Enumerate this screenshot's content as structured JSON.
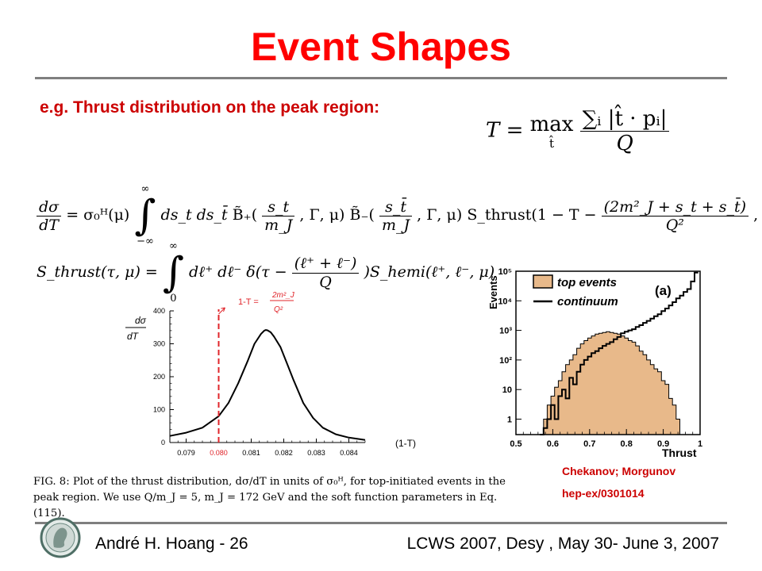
{
  "slide": {
    "title": "Event Shapes",
    "subtitle": "e.g. Thrust distribution on the peak region:",
    "thrust_definition": {
      "lhs": "T = ",
      "operator": "max",
      "operator_sub": "t̂",
      "numerator": "∑ᵢ |t̂ · pᵢ|",
      "denominator": "Q"
    },
    "eq1": {
      "lhs_num": "dσ",
      "lhs_den": "dT",
      "rhs_start": "= σ₀ᴴ(μ)",
      "integral": "∫",
      "int_upper": "∞",
      "int_lower": "−∞",
      "measure": "ds_t ds_t̄",
      "b_plus": "B̃₊(",
      "arg1_num": "s_t",
      "arg1_den": "m_J",
      "arg_rest": ", Γ, μ)",
      "b_minus": "B̃₋(",
      "arg2_num": "s_t̄",
      "arg2_den": "m_J",
      "s_thrust": "S_thrust(1 − T −",
      "arg3_num": "(2m²_J + s_t + s_t̄)",
      "arg3_den": "Q²",
      "arg3_rest": ", μ)"
    },
    "eq2": {
      "lhs": "S_thrust(τ, μ) =",
      "integral": "∫",
      "int_upper": "∞",
      "int_lower": "0",
      "measure": "dℓ⁺ dℓ⁻ δ(τ −",
      "frac_num": "(ℓ⁺ + ℓ⁻)",
      "frac_den": "Q",
      "rhs_end": ")S_hemi(ℓ⁺, ℓ⁻, μ)"
    },
    "caption": "FIG. 8: Plot of the thrust distribution, dσ/dT in units of σ₀ᴴ, for top-initiated events in the peak region. We use Q/m_J = 5, m_J = 172 GeV and the soft function parameters in Eq. (115).",
    "reference": {
      "names": "Chekanov;  Morgunov",
      "id": "hep-ex/0301014"
    },
    "footer": {
      "left": "André H. Hoang - 26",
      "right": "LCWS 2007, Desy , May 30- June 3, 2007"
    },
    "colors": {
      "title": "#ff0000",
      "subtitle": "#cc0000",
      "rule": "#7f7f7f",
      "marker_line": "#e0242a",
      "top_fill": "#e8b98a"
    }
  },
  "chart_data": [
    {
      "type": "line",
      "title": "",
      "ylabel_num": "dσ",
      "ylabel_den": "dT",
      "xlabel": "(1-T)",
      "xlim": [
        0.0785,
        0.0845
      ],
      "ylim": [
        0,
        400
      ],
      "x_ticks": [
        "0.079",
        "0.080",
        "0.081",
        "0.082",
        "0.083",
        "0.084"
      ],
      "y_ticks": [
        "0",
        "100",
        "200",
        "300",
        "400"
      ],
      "peak_marker": {
        "x": 0.08,
        "label_prefix": "1-T =",
        "label_num": "2m²_J",
        "label_den": "Q²"
      },
      "series": [
        {
          "x": [
            0.0785,
            0.079,
            0.0795,
            0.08,
            0.0803,
            0.0806,
            0.0809,
            0.0811,
            0.0813,
            0.0814,
            0.08145,
            0.0815,
            0.0816,
            0.0817,
            0.0819,
            0.0821,
            0.0823,
            0.0826,
            0.0829,
            0.0832,
            0.0836,
            0.084,
            0.0845
          ],
          "y": [
            20,
            30,
            45,
            80,
            120,
            180,
            250,
            300,
            330,
            340,
            342,
            341,
            335,
            322,
            290,
            240,
            190,
            120,
            75,
            45,
            25,
            15,
            8
          ]
        }
      ]
    },
    {
      "type": "histogram",
      "xlabel": "Thrust",
      "ylabel": "Events",
      "yscale": "log",
      "xlim": [
        0.5,
        1.0
      ],
      "ylim": [
        0.3,
        100000
      ],
      "x_ticks": [
        "0.5",
        "0.6",
        "0.7",
        "0.8",
        "0.9",
        "1"
      ],
      "y_ticks": [
        "1",
        "10",
        "10²",
        "10³",
        "10⁴",
        "10⁵"
      ],
      "panel_label": "(a)",
      "legend": {
        "placement": "top-left",
        "entries": [
          "top events",
          "continuum"
        ]
      },
      "series": [
        {
          "name": "top events",
          "x": [
            0.57,
            0.58,
            0.59,
            0.6,
            0.61,
            0.62,
            0.63,
            0.64,
            0.65,
            0.66,
            0.67,
            0.68,
            0.69,
            0.7,
            0.71,
            0.72,
            0.73,
            0.74,
            0.75,
            0.76,
            0.77,
            0.78,
            0.79,
            0.8,
            0.81,
            0.82,
            0.83,
            0.84,
            0.85,
            0.86,
            0.87,
            0.88,
            0.89,
            0.9,
            0.91,
            0.92,
            0.93,
            0.94,
            0.95,
            0.96
          ],
          "y": [
            0.3,
            1,
            3,
            6,
            12,
            20,
            40,
            70,
            100,
            150,
            250,
            350,
            450,
            550,
            650,
            750,
            800,
            850,
            900,
            850,
            800,
            750,
            650,
            550,
            450,
            400,
            300,
            200,
            150,
            100,
            70,
            50,
            40,
            20,
            15,
            5,
            3,
            1,
            0.3,
            0.3
          ]
        },
        {
          "name": "continuum",
          "x": [
            0.57,
            0.58,
            0.59,
            0.6,
            0.61,
            0.62,
            0.63,
            0.64,
            0.65,
            0.66,
            0.67,
            0.68,
            0.69,
            0.7,
            0.71,
            0.72,
            0.73,
            0.74,
            0.75,
            0.76,
            0.77,
            0.78,
            0.79,
            0.8,
            0.81,
            0.82,
            0.83,
            0.84,
            0.85,
            0.86,
            0.87,
            0.88,
            0.89,
            0.9,
            0.91,
            0.92,
            0.93,
            0.94,
            0.95,
            0.96,
            0.97,
            0.98,
            0.99
          ],
          "y": [
            0.3,
            0.5,
            1,
            3,
            1,
            6,
            10,
            5,
            25,
            15,
            40,
            70,
            100,
            130,
            170,
            200,
            250,
            300,
            350,
            400,
            500,
            600,
            800,
            900,
            1000,
            1100,
            1300,
            1500,
            1800,
            2100,
            2500,
            3000,
            3500,
            4500,
            5500,
            7000,
            9000,
            12000,
            15000,
            20000,
            25000,
            45000,
            90000
          ]
        }
      ]
    }
  ]
}
